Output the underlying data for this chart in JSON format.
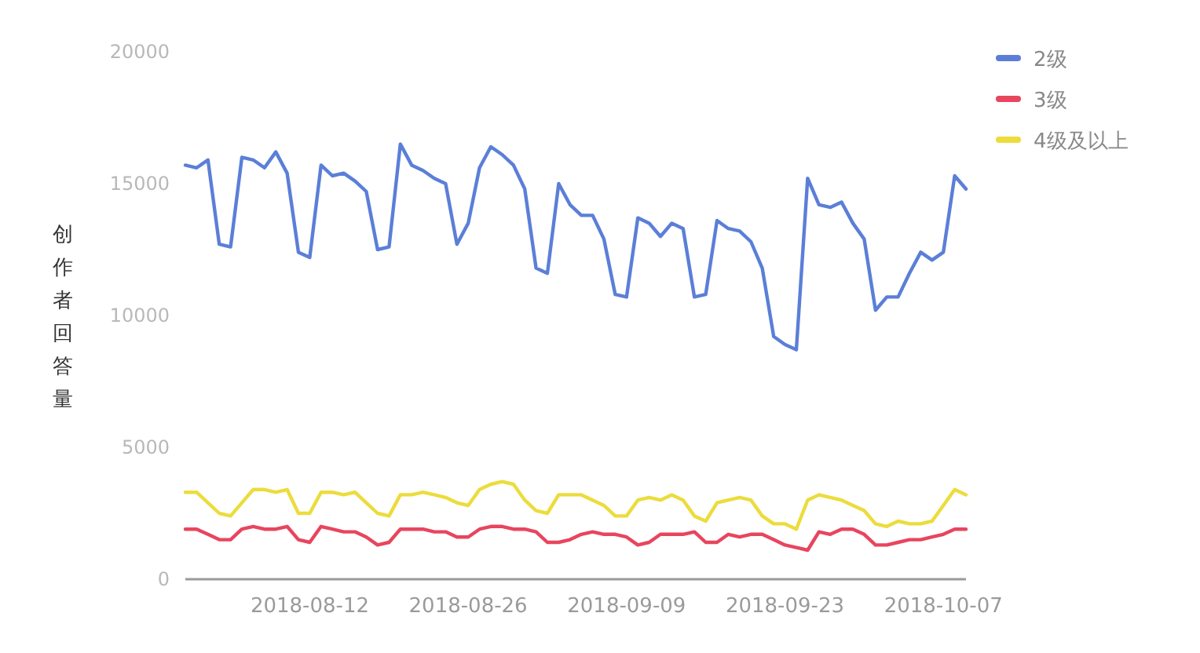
{
  "chart_data": {
    "type": "line",
    "ylabel": "创作者回答量",
    "x": [
      "2018-08-01",
      "2018-08-02",
      "2018-08-03",
      "2018-08-04",
      "2018-08-05",
      "2018-08-06",
      "2018-08-07",
      "2018-08-08",
      "2018-08-09",
      "2018-08-10",
      "2018-08-11",
      "2018-08-12",
      "2018-08-13",
      "2018-08-14",
      "2018-08-15",
      "2018-08-16",
      "2018-08-17",
      "2018-08-18",
      "2018-08-19",
      "2018-08-20",
      "2018-08-21",
      "2018-08-22",
      "2018-08-23",
      "2018-08-24",
      "2018-08-25",
      "2018-08-26",
      "2018-08-27",
      "2018-08-28",
      "2018-08-29",
      "2018-08-30",
      "2018-08-31",
      "2018-09-01",
      "2018-09-02",
      "2018-09-03",
      "2018-09-04",
      "2018-09-05",
      "2018-09-06",
      "2018-09-07",
      "2018-09-08",
      "2018-09-09",
      "2018-09-10",
      "2018-09-11",
      "2018-09-12",
      "2018-09-13",
      "2018-09-14",
      "2018-09-15",
      "2018-09-16",
      "2018-09-17",
      "2018-09-18",
      "2018-09-19",
      "2018-09-20",
      "2018-09-21",
      "2018-09-22",
      "2018-09-23",
      "2018-09-24",
      "2018-09-25",
      "2018-09-26",
      "2018-09-27",
      "2018-09-28",
      "2018-09-29",
      "2018-09-30",
      "2018-10-01",
      "2018-10-02",
      "2018-10-03",
      "2018-10-04",
      "2018-10-05",
      "2018-10-06",
      "2018-10-07",
      "2018-10-08",
      "2018-10-09"
    ],
    "series": [
      {
        "name": "2级",
        "color": "#5b7fd8",
        "values": [
          15700,
          15600,
          15900,
          12700,
          12600,
          16000,
          15900,
          15600,
          16200,
          15400,
          12400,
          12200,
          15700,
          15300,
          15400,
          15100,
          14700,
          12500,
          12600,
          16500,
          15700,
          15500,
          15200,
          15000,
          12700,
          13500,
          15600,
          16400,
          16100,
          15700,
          14800,
          11800,
          11600,
          15000,
          14200,
          13800,
          13800,
          12900,
          10800,
          10700,
          13700,
          13500,
          13000,
          13500,
          13300,
          10700,
          10800,
          13600,
          13300,
          13200,
          12800,
          11800,
          9200,
          8900,
          8700,
          15200,
          14200,
          14100,
          14300,
          13500,
          12900,
          10200,
          10700,
          10700,
          11600,
          12400,
          12100,
          12400,
          15300,
          14800
        ]
      },
      {
        "name": "3级",
        "color": "#e8455e",
        "values": [
          1900,
          1900,
          1700,
          1500,
          1500,
          1900,
          2000,
          1900,
          1900,
          2000,
          1500,
          1400,
          2000,
          1900,
          1800,
          1800,
          1600,
          1300,
          1400,
          1900,
          1900,
          1900,
          1800,
          1800,
          1600,
          1600,
          1900,
          2000,
          2000,
          1900,
          1900,
          1800,
          1400,
          1400,
          1500,
          1700,
          1800,
          1700,
          1700,
          1600,
          1300,
          1400,
          1700,
          1700,
          1700,
          1800,
          1400,
          1400,
          1700,
          1600,
          1700,
          1700,
          1500,
          1300,
          1200,
          1100,
          1800,
          1700,
          1900,
          1900,
          1700,
          1300,
          1300,
          1400,
          1500,
          1500,
          1600,
          1700,
          1900,
          1900
        ]
      },
      {
        "name": "4级及以上",
        "color": "#ecdc3c",
        "values": [
          3300,
          3300,
          2900,
          2500,
          2400,
          2900,
          3400,
          3400,
          3300,
          3400,
          2500,
          2500,
          3300,
          3300,
          3200,
          3300,
          2900,
          2500,
          2400,
          3200,
          3200,
          3300,
          3200,
          3100,
          2900,
          2800,
          3400,
          3600,
          3700,
          3600,
          3000,
          2600,
          2500,
          3200,
          3200,
          3200,
          3000,
          2800,
          2400,
          2400,
          3000,
          3100,
          3000,
          3200,
          3000,
          2400,
          2200,
          2900,
          3000,
          3100,
          3000,
          2400,
          2100,
          2100,
          1900,
          3000,
          3200,
          3100,
          3000,
          2800,
          2600,
          2100,
          2000,
          2200,
          2100,
          2100,
          2200,
          2800,
          3400,
          3200
        ]
      }
    ],
    "xlim": [
      "2018-08-01",
      "2018-10-09"
    ],
    "xticks": [
      "2018-08-12",
      "2018-08-26",
      "2018-09-09",
      "2018-09-23",
      "2018-10-07"
    ],
    "ylim": [
      0,
      20000
    ],
    "yticks": [
      0,
      5000,
      10000,
      15000,
      20000
    ],
    "legend": "top right"
  }
}
